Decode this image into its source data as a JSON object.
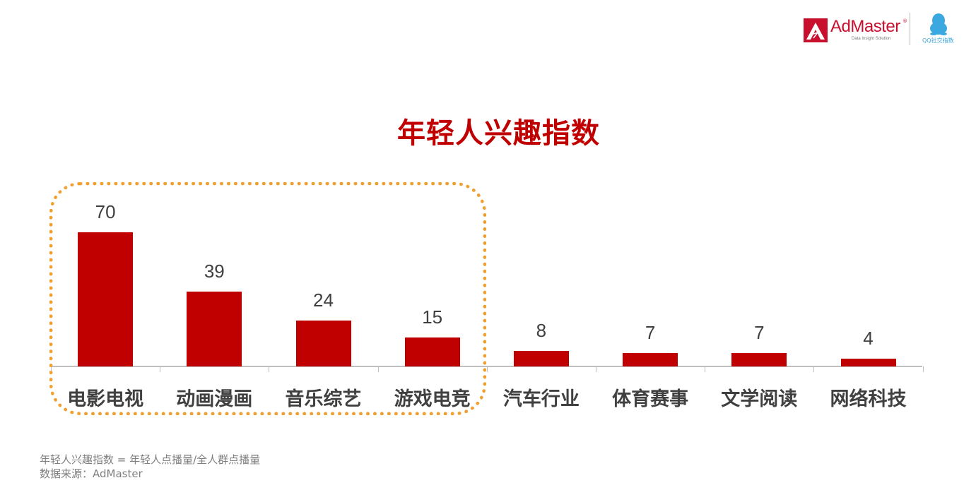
{
  "header": {
    "logo_brand": "AdMaster",
    "logo_tagline": "Data Insight Solution",
    "logo_registered": "®",
    "partner_logo_text": "QQ社交指数"
  },
  "chart_data": {
    "type": "bar",
    "title": "年轻人兴趣指数",
    "xlabel": "",
    "ylabel": "",
    "ylim": [
      0,
      70
    ],
    "grid": false,
    "legend": null,
    "bar_color": "#c00000",
    "categories": [
      "电影电视",
      "动画漫画",
      "音乐综艺",
      "游戏电竞",
      "汽车行业",
      "体育赛事",
      "文学阅读",
      "网络科技"
    ],
    "values": [
      70,
      39,
      24,
      15,
      8,
      7,
      7,
      4
    ],
    "data_labels": [
      "70",
      "39",
      "24",
      "15",
      "8",
      "7",
      "7",
      "4"
    ],
    "annotations": [
      {
        "type": "dotted-rounded-box",
        "color": "#f0a030",
        "encloses": [
          "电影电视",
          "动画漫画",
          "音乐综艺",
          "游戏电竞"
        ]
      }
    ]
  },
  "footnotes": {
    "formula": "年轻人兴趣指数 = 年轻人点播量/全人群点播量",
    "source": "数据来源：AdMaster"
  }
}
